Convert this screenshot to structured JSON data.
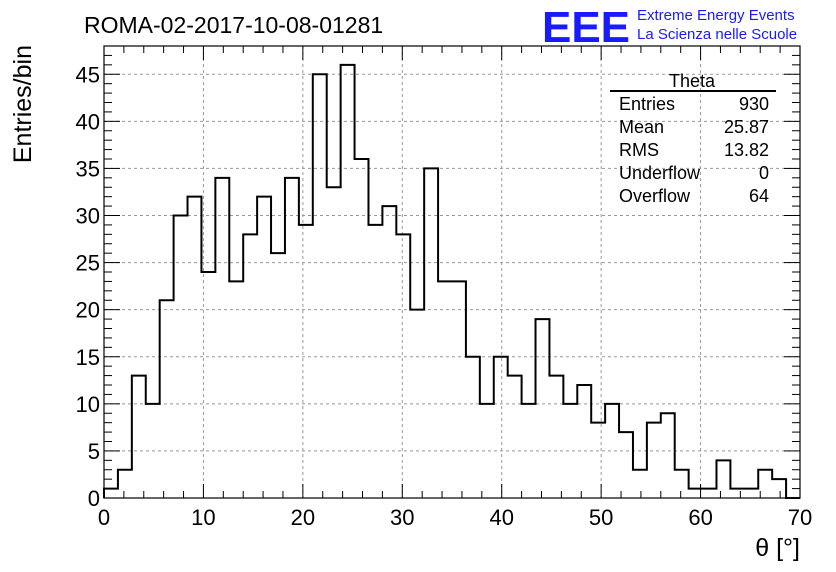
{
  "header": {
    "title": "ROMA-02-2017-10-08-01281",
    "logo_text": "EEE",
    "org_line1": "Extreme Energy Events",
    "org_line2": "La Scienza nelle Scuole"
  },
  "stats_box": {
    "name": "Theta",
    "rows": [
      {
        "label": "Entries",
        "value": "930"
      },
      {
        "label": "Mean",
        "value": "25.87"
      },
      {
        "label": "RMS",
        "value": "13.82"
      },
      {
        "label": "Underflow",
        "value": "0"
      },
      {
        "label": "Overflow",
        "value": "64"
      }
    ]
  },
  "colors": {
    "line": "#000000",
    "logo": "#1a1aff",
    "grid": "#999999"
  },
  "chart_data": {
    "type": "bar",
    "histogram": true,
    "xlabel": "θ [°]",
    "ylabel": "Entries/bin",
    "xlim": [
      0,
      70
    ],
    "ylim": [
      0,
      48
    ],
    "bin_width": 1.4,
    "x_ticks": [
      0,
      10,
      20,
      30,
      40,
      50,
      60,
      70
    ],
    "y_ticks": [
      0,
      5,
      10,
      15,
      20,
      25,
      30,
      35,
      40,
      45
    ],
    "grid": true,
    "values": [
      1,
      3,
      13,
      10,
      21,
      30,
      32,
      24,
      34,
      23,
      28,
      32,
      26,
      34,
      29,
      45,
      33,
      46,
      36,
      29,
      31,
      28,
      20,
      35,
      23,
      23,
      15,
      10,
      15,
      13,
      10,
      19,
      13,
      10,
      12,
      8,
      10,
      7,
      3,
      8,
      9,
      3,
      1,
      1,
      4,
      1,
      1,
      3,
      2,
      0
    ]
  }
}
